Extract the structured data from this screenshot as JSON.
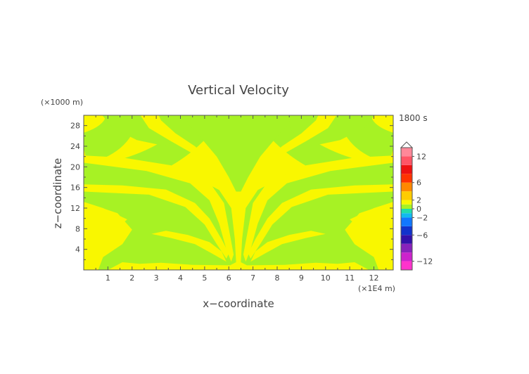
{
  "chart_data": {
    "type": "heatmap",
    "title": "Vertical Velocity",
    "time_label": "1800 s",
    "xlabel": "x−coordinate",
    "ylabel": "z−coordinate",
    "x_unit": "(×1E4 m)",
    "y_unit": "(×1000 m)",
    "xlim": [
      0,
      12.8
    ],
    "ylim": [
      0,
      30
    ],
    "x_ticks": [
      "1",
      "2",
      "3",
      "4",
      "5",
      "6",
      "7",
      "8",
      "9",
      "10",
      "11",
      "12"
    ],
    "y_ticks": [
      "4",
      "8",
      "12",
      "16",
      "20",
      "24",
      "28"
    ],
    "colorbar": {
      "range": [
        -14,
        14
      ],
      "tick_labels": [
        "12",
        "6",
        "2",
        "0",
        "−2",
        "−6",
        "−12"
      ],
      "tick_values": [
        12,
        6,
        2,
        0,
        -2,
        -6,
        -12
      ]
    },
    "field_description": "Alternating bands: yellow (~0 to 2) and light green (~-2 to 0), radiating upward from a source near x=6.4, z=0"
  }
}
